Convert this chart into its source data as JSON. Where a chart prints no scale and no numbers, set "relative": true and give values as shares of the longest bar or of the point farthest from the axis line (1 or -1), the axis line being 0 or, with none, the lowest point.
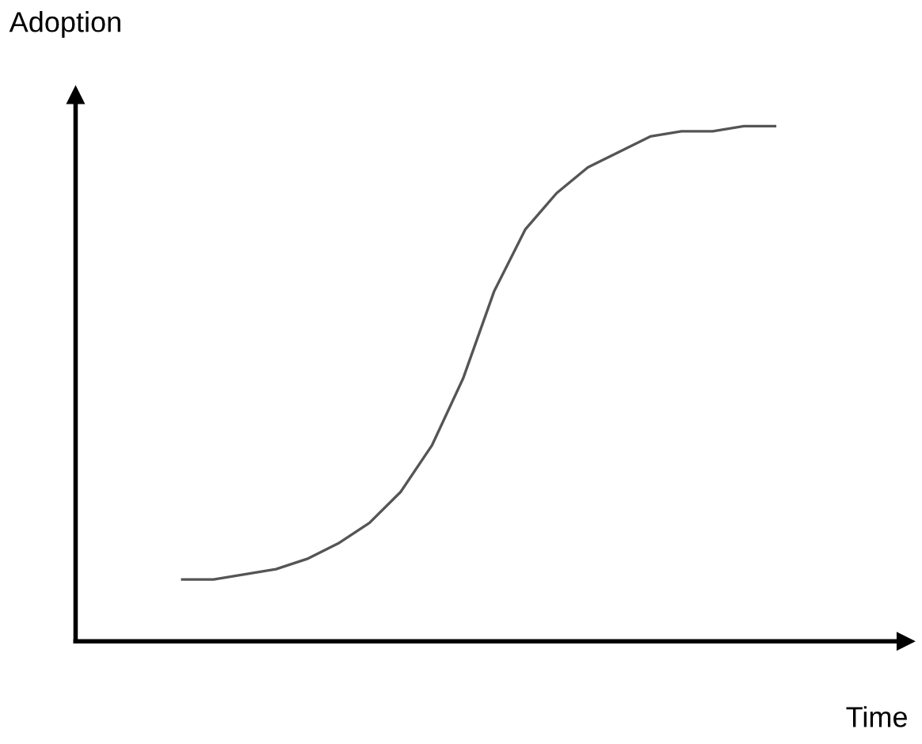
{
  "chart_data": {
    "type": "line",
    "relative": true,
    "xlabel": "Time",
    "ylabel": "Adoption",
    "categories": [
      null,
      null,
      null,
      null,
      null,
      null,
      null,
      null,
      null,
      null,
      null,
      null,
      null,
      null,
      null,
      null,
      null,
      null,
      null,
      null
    ],
    "series": [
      {
        "color": "#555555",
        "values": [
          0.12,
          0.12,
          0.13,
          0.14,
          0.16,
          0.19,
          0.23,
          0.29,
          0.38,
          0.51,
          0.68,
          0.8,
          0.87,
          0.92,
          0.95,
          0.98,
          0.99,
          0.99,
          1.0,
          1.0
        ]
      }
    ],
    "marker": "none",
    "line_style": "solid",
    "grid": false,
    "legend": false
  }
}
